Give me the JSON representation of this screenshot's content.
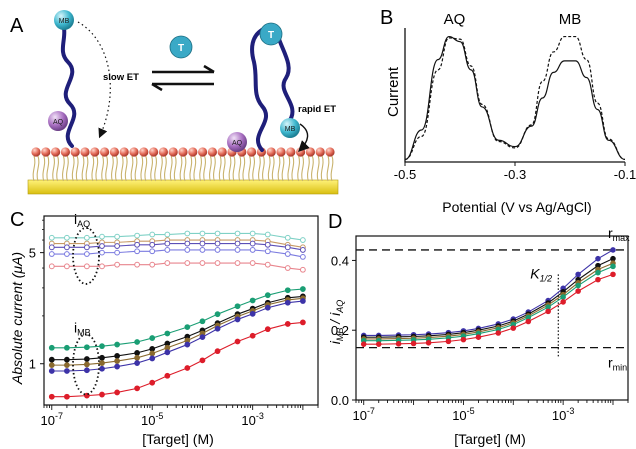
{
  "figure": {
    "panel_labels": [
      "A",
      "B",
      "C",
      "D"
    ]
  },
  "panel_a": {
    "tags": {
      "mb": "MB",
      "aq": "AQ",
      "target": "T"
    },
    "slow_et": "slow ET",
    "rapid_et": "rapid ET",
    "colors": {
      "strand": "#1f1f7a",
      "mb_tag": "#3fb8cf",
      "aq_tag": "#a86fc1",
      "target": "#3aa9c6",
      "monolayer_head": "#e36a58",
      "monolayer_tail": "#c9b36e",
      "gold": "#f1dd2c"
    }
  },
  "chart_data": [
    {
      "panel": "B",
      "type": "line",
      "ylabel": "Current",
      "xlabel": "Potential (V vs Ag/AgCl)",
      "xlim": [
        -0.5,
        -0.1
      ],
      "xticks": [
        -0.5,
        -0.3,
        -0.1
      ],
      "xtick_labels": [
        "-0.5",
        "-0.3",
        "-0.1"
      ],
      "peak_labels": [
        "AQ",
        "MB"
      ],
      "series": [
        {
          "style": "dashed",
          "x": [
            -0.5,
            -0.47,
            -0.44,
            -0.42,
            -0.4,
            -0.38,
            -0.36,
            -0.33,
            -0.3,
            -0.27,
            -0.25,
            -0.23,
            -0.21,
            -0.19,
            -0.17,
            -0.15,
            -0.13,
            -0.1
          ],
          "y": [
            0.02,
            0.2,
            0.72,
            0.97,
            0.96,
            0.75,
            0.45,
            0.16,
            0.11,
            0.29,
            0.63,
            0.86,
            0.98,
            0.98,
            0.8,
            0.46,
            0.18,
            0.02
          ]
        },
        {
          "style": "solid",
          "x": [
            -0.5,
            -0.47,
            -0.44,
            -0.42,
            -0.4,
            -0.38,
            -0.36,
            -0.33,
            -0.3,
            -0.27,
            -0.25,
            -0.23,
            -0.21,
            -0.19,
            -0.17,
            -0.15,
            -0.13,
            -0.1
          ],
          "y": [
            0.02,
            0.25,
            0.8,
            0.98,
            0.94,
            0.72,
            0.43,
            0.17,
            0.12,
            0.28,
            0.5,
            0.7,
            0.79,
            0.79,
            0.66,
            0.41,
            0.17,
            0.02
          ]
        }
      ]
    },
    {
      "panel": "C",
      "type": "line",
      "ylabel": "Absolute current (μA)",
      "xlabel": "[Target] (M)",
      "xscale": "log",
      "yscale": "log",
      "xlim": [
        7e-08,
        0.02
      ],
      "ylim": [
        0.55,
        8.5
      ],
      "xticks": [
        1e-07,
        1e-05,
        0.001
      ],
      "xtick_labels": [
        "10",
        "10",
        "10"
      ],
      "xtick_exponents": [
        "-7",
        "-5",
        "-3"
      ],
      "yticks": [
        1,
        5
      ],
      "ytick_labels": [
        "1",
        "5"
      ],
      "annotations": [
        {
          "text": "i",
          "sub": "AQ",
          "x": 4e-07,
          "y": 5.2
        },
        {
          "text": "i",
          "sub": "MB",
          "x": 4e-07,
          "y": 1.08
        }
      ],
      "x": [
        1e-07,
        2e-07,
        5e-07,
        1e-06,
        2e-06,
        5e-06,
        1e-05,
        2e-05,
        5e-05,
        0.0001,
        0.0002,
        0.0005,
        0.001,
        0.002,
        0.005,
        0.01
      ],
      "series": [
        {
          "color": "#7fd1c6",
          "open": true,
          "values": [
            6.2,
            6.2,
            6.2,
            6.3,
            6.3,
            6.4,
            6.5,
            6.5,
            6.6,
            6.6,
            6.6,
            6.6,
            6.6,
            6.5,
            6.2,
            6.0
          ]
        },
        {
          "color": "#c79a66",
          "open": true,
          "values": [
            5.7,
            5.7,
            5.7,
            5.8,
            5.8,
            5.9,
            5.9,
            6.0,
            6.0,
            6.0,
            6.0,
            6.0,
            6.0,
            5.9,
            5.6,
            5.4
          ]
        },
        {
          "color": "#5c4fb7",
          "open": true,
          "values": [
            5.4,
            5.4,
            5.4,
            5.5,
            5.5,
            5.6,
            5.6,
            5.7,
            5.7,
            5.7,
            5.7,
            5.7,
            5.7,
            5.6,
            5.4,
            5.2
          ]
        },
        {
          "color": "#7b7be0",
          "open": true,
          "values": [
            4.9,
            4.9,
            4.9,
            5.0,
            5.0,
            5.1,
            5.1,
            5.2,
            5.2,
            5.2,
            5.2,
            5.2,
            5.2,
            5.1,
            4.9,
            4.7
          ]
        },
        {
          "color": "#e8858d",
          "open": true,
          "values": [
            4.1,
            4.1,
            4.1,
            4.1,
            4.2,
            4.2,
            4.2,
            4.3,
            4.3,
            4.3,
            4.3,
            4.3,
            4.3,
            4.2,
            4.0,
            3.9
          ]
        },
        {
          "color": "#1a9e74",
          "open": false,
          "values": [
            1.26,
            1.26,
            1.27,
            1.29,
            1.32,
            1.37,
            1.45,
            1.55,
            1.7,
            1.85,
            2.05,
            2.3,
            2.5,
            2.7,
            2.9,
            2.95
          ]
        },
        {
          "color": "#111111",
          "open": false,
          "values": [
            1.06,
            1.06,
            1.07,
            1.09,
            1.12,
            1.17,
            1.24,
            1.34,
            1.48,
            1.62,
            1.8,
            2.05,
            2.22,
            2.42,
            2.6,
            2.65
          ]
        },
        {
          "color": "#8a6a2e",
          "open": false,
          "values": [
            0.98,
            0.98,
            0.99,
            1.01,
            1.04,
            1.09,
            1.16,
            1.26,
            1.4,
            1.55,
            1.74,
            1.98,
            2.15,
            2.35,
            2.52,
            2.58
          ]
        },
        {
          "color": "#3d33a8",
          "open": false,
          "values": [
            0.9,
            0.9,
            0.91,
            0.93,
            0.96,
            1.01,
            1.08,
            1.18,
            1.32,
            1.47,
            1.66,
            1.9,
            2.06,
            2.25,
            2.42,
            2.48
          ]
        },
        {
          "color": "#dd1d2a",
          "open": false,
          "values": [
            0.62,
            0.62,
            0.63,
            0.64,
            0.66,
            0.7,
            0.76,
            0.84,
            0.94,
            1.05,
            1.2,
            1.38,
            1.5,
            1.65,
            1.78,
            1.82
          ]
        }
      ]
    },
    {
      "panel": "D",
      "type": "line",
      "ylabel": "i",
      "ylabel_sub": "MB",
      "ylabel_sep": " / ",
      "ylabel2": "i",
      "ylabel2_sub": "AQ",
      "xlabel": "[Target] (M)",
      "xscale": "log",
      "xlim": [
        7e-08,
        0.02
      ],
      "ylim": [
        0,
        0.47
      ],
      "xticks": [
        1e-07,
        1e-05,
        0.001
      ],
      "xtick_labels": [
        "10",
        "10",
        "10"
      ],
      "xtick_exponents": [
        "-7",
        "-5",
        "-3"
      ],
      "yticks": [
        0.0,
        0.2,
        0.4
      ],
      "ytick_labels": [
        "0.0",
        "0.2",
        "0.4"
      ],
      "reference_lines": [
        {
          "y": 0.43,
          "label": "r",
          "sub": "max"
        },
        {
          "y": 0.15,
          "label": "r",
          "sub": "min"
        }
      ],
      "midpoint": {
        "x": 0.0008,
        "label": "K",
        "sub": "1/2"
      },
      "x": [
        1e-07,
        2e-07,
        5e-07,
        1e-06,
        2e-06,
        5e-06,
        1e-05,
        2e-05,
        5e-05,
        0.0001,
        0.0002,
        0.0005,
        0.001,
        0.002,
        0.005,
        0.01
      ],
      "series": [
        {
          "color": "#3d33a8",
          "values": [
            0.185,
            0.185,
            0.186,
            0.187,
            0.189,
            0.193,
            0.198,
            0.205,
            0.218,
            0.232,
            0.252,
            0.285,
            0.32,
            0.36,
            0.405,
            0.43
          ]
        },
        {
          "color": "#111111",
          "values": [
            0.18,
            0.18,
            0.181,
            0.182,
            0.184,
            0.188,
            0.193,
            0.2,
            0.212,
            0.226,
            0.246,
            0.278,
            0.31,
            0.345,
            0.385,
            0.405
          ]
        },
        {
          "color": "#8a6a2e",
          "values": [
            0.175,
            0.175,
            0.176,
            0.177,
            0.179,
            0.183,
            0.188,
            0.195,
            0.207,
            0.221,
            0.241,
            0.272,
            0.302,
            0.336,
            0.374,
            0.392
          ]
        },
        {
          "color": "#1a9e74",
          "values": [
            0.17,
            0.17,
            0.171,
            0.172,
            0.174,
            0.178,
            0.183,
            0.19,
            0.202,
            0.216,
            0.236,
            0.266,
            0.295,
            0.328,
            0.365,
            0.383
          ]
        },
        {
          "color": "#dd1d2a",
          "values": [
            0.16,
            0.16,
            0.161,
            0.162,
            0.164,
            0.168,
            0.173,
            0.18,
            0.192,
            0.206,
            0.225,
            0.254,
            0.281,
            0.312,
            0.345,
            0.36
          ]
        }
      ]
    }
  ]
}
